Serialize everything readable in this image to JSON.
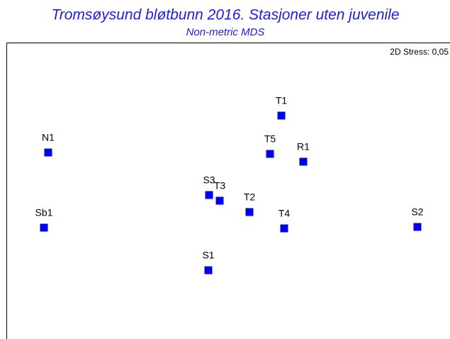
{
  "chart_data": {
    "type": "scatter",
    "title": "Tromsøysund bløtbunn 2016. Stasjoner uten juvenile",
    "subtitle": "Non-metric MDS",
    "annotation": "2D Stress: 0,05",
    "color": "#0000ee",
    "labels": [
      "N1",
      "Sb1",
      "S3",
      "T3",
      "T2",
      "S1",
      "T1",
      "T5",
      "R1",
      "T4",
      "S2"
    ],
    "x": [
      -2.57,
      -2.63,
      -0.3,
      -0.15,
      0.27,
      -0.31,
      0.72,
      0.56,
      1.03,
      0.76,
      2.64
    ],
    "y": [
      0.57,
      -0.49,
      -0.03,
      -0.11,
      -0.27,
      -1.09,
      1.09,
      0.55,
      0.44,
      -0.5,
      -0.48
    ]
  }
}
